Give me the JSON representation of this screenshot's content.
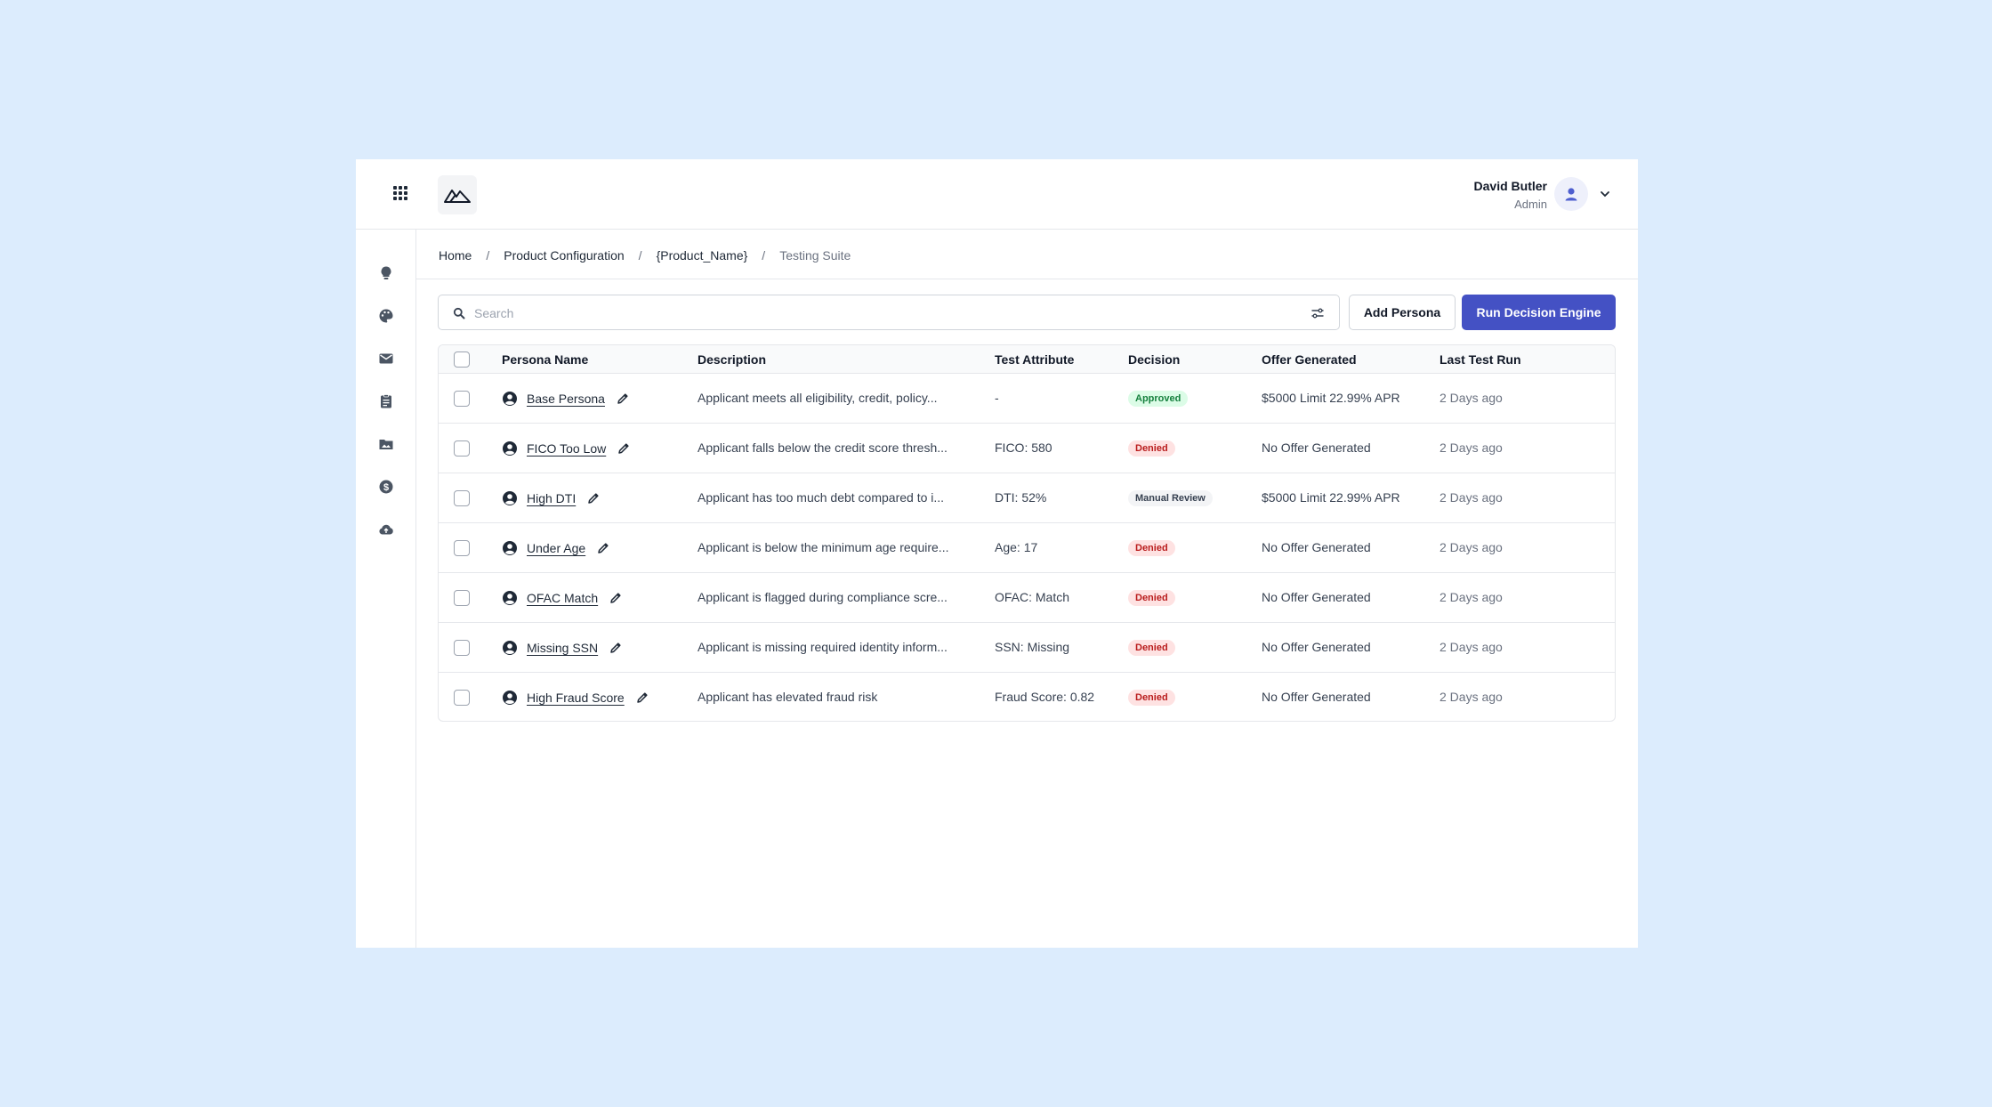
{
  "header": {
    "user_name": "David Butler",
    "user_role": "Admin"
  },
  "sidebar": {
    "icons": [
      "lightbulb-icon",
      "palette-icon",
      "mail-icon",
      "clipboard-icon",
      "image-folder-icon",
      "dollar-icon",
      "cloud-upload-icon"
    ]
  },
  "breadcrumb": {
    "items": [
      "Home",
      "Product Configuration",
      "{Product_Name}",
      "Testing Suite"
    ],
    "separator": "/"
  },
  "toolbar": {
    "search_placeholder": "Search",
    "add_persona_label": "Add Persona",
    "run_engine_label": "Run Decision Engine"
  },
  "table": {
    "columns": [
      "Persona Name",
      "Description",
      "Test Attribute",
      "Decision",
      "Offer Generated",
      "Last Test Run"
    ],
    "rows": [
      {
        "name": "Base Persona",
        "description": "Applicant meets all eligibility, credit, policy...",
        "attribute": "-",
        "decision": "Approved",
        "offer": "$5000 Limit 22.99% APR",
        "last_run": "2 Days ago"
      },
      {
        "name": "FICO Too Low",
        "description": "Applicant falls below the credit score thresh...",
        "attribute": "FICO: 580",
        "decision": "Denied",
        "offer": "No Offer Generated",
        "last_run": "2 Days ago"
      },
      {
        "name": "High DTI",
        "description": "Applicant has too much debt compared to i...",
        "attribute": "DTI: 52%",
        "decision": "Manual Review",
        "offer": "$5000 Limit 22.99% APR",
        "last_run": "2 Days ago"
      },
      {
        "name": "Under Age",
        "description": "Applicant is below the minimum age require...",
        "attribute": "Age: 17",
        "decision": "Denied",
        "offer": "No Offer Generated",
        "last_run": "2 Days ago"
      },
      {
        "name": "OFAC Match",
        "description": "Applicant is flagged during compliance scre...",
        "attribute": "OFAC: Match",
        "decision": "Denied",
        "offer": "No Offer Generated",
        "last_run": "2 Days ago"
      },
      {
        "name": "Missing SSN",
        "description": "Applicant is missing required identity inform...",
        "attribute": "SSN: Missing",
        "decision": "Denied",
        "offer": "No Offer Generated",
        "last_run": "2 Days ago"
      },
      {
        "name": "High Fraud Score",
        "description": "Applicant has elevated fraud risk",
        "attribute": "Fraud Score: 0.82",
        "decision": "Denied",
        "offer": "No Offer Generated",
        "last_run": "2 Days ago"
      }
    ]
  },
  "colors": {
    "page_background": "#dcecfd",
    "primary": "#4451c4",
    "approved_bg": "#dcfce7",
    "approved_text": "#15803d",
    "denied_bg": "#fee2e2",
    "denied_text": "#b91c1c",
    "review_bg": "#f3f4f6",
    "review_text": "#374151"
  }
}
